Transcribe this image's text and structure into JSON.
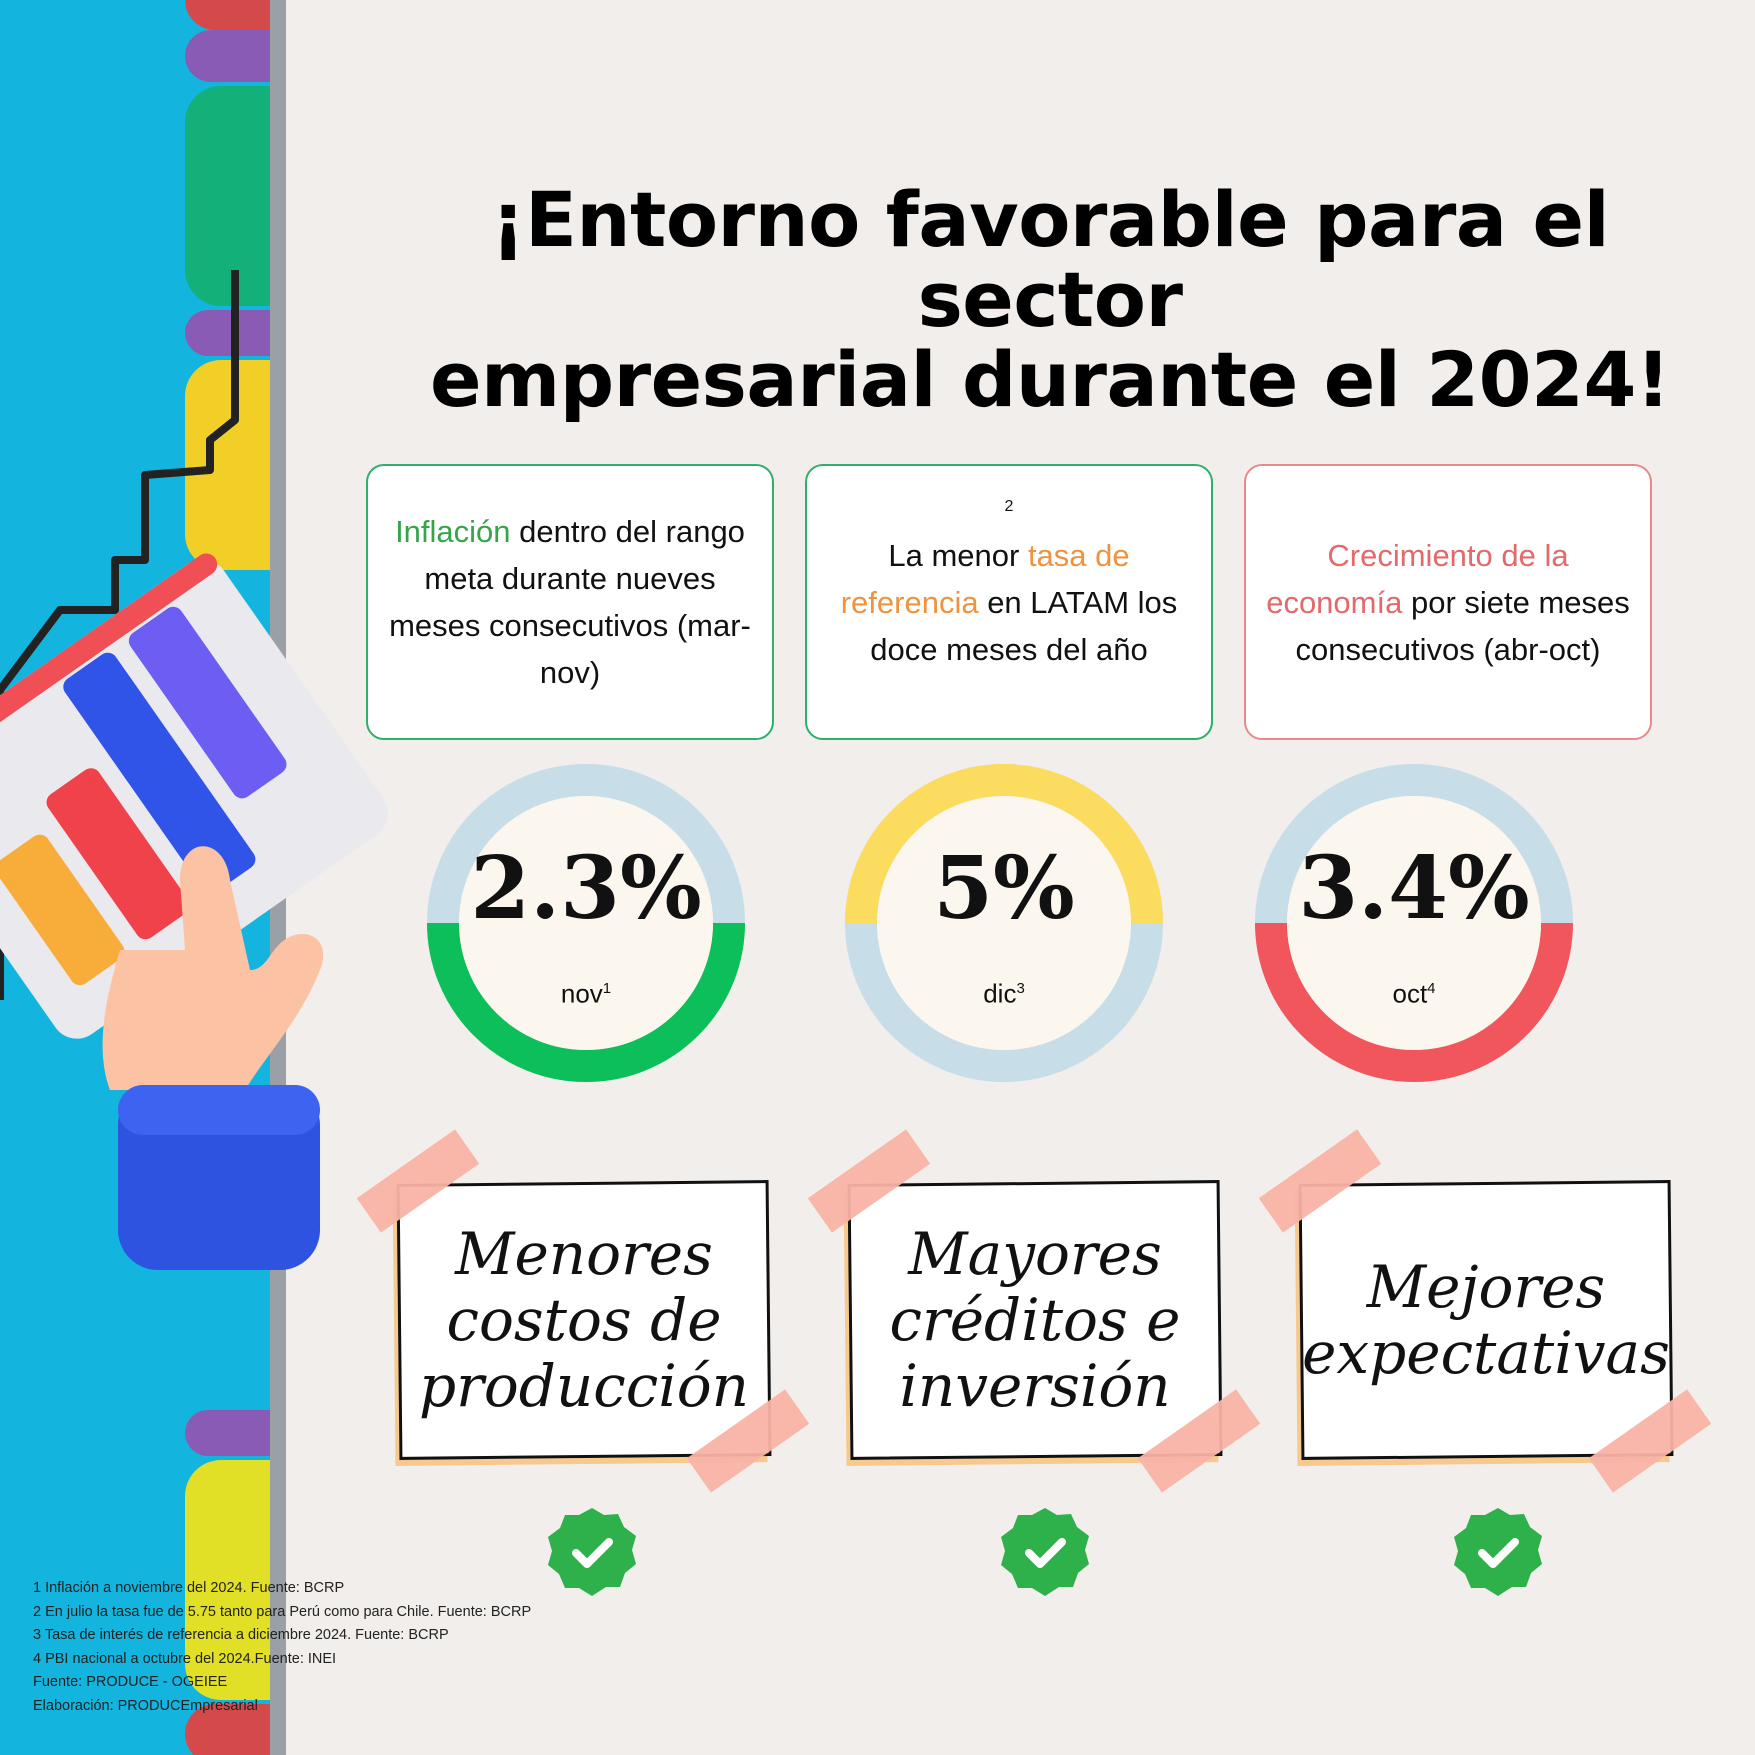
{
  "title": {
    "line1": "¡Entorno favorable para el sector",
    "line2": "empresarial durante el 2024!"
  },
  "cards": [
    {
      "highlight": "Inflación",
      "rest": " dentro del rango meta durante nueves meses consecutivos (mar-nov)"
    },
    {
      "superscript": "2",
      "pre": "La menor ",
      "highlight": "tasa de referencia",
      "rest": " en LATAM los doce meses del año"
    },
    {
      "highlight": "Crecimiento de la economía",
      "rest": " por siete meses consecutivos (abr-oct)"
    }
  ],
  "indicators": [
    {
      "value": "2.3%",
      "label": "nov",
      "note": "1",
      "accent": "#0cbf5a",
      "track": "#c7dde8"
    },
    {
      "value": "5%",
      "label": "dic",
      "note": "3",
      "accent": "#fbdc5e",
      "track": "#c7dde8"
    },
    {
      "value": "3.4%",
      "label": "oct",
      "note": "4",
      "accent": "#f0565c",
      "track": "#c7dde8"
    }
  ],
  "notes": [
    {
      "lines": [
        "Menores",
        "costos de",
        "producción"
      ]
    },
    {
      "lines": [
        "Mayores",
        "créditos e",
        "inversión"
      ]
    },
    {
      "lines": [
        "Mejores",
        "expectativas"
      ]
    }
  ],
  "check_icon": "check-badge-icon",
  "footnotes": [
    "1 Inflación a noviembre del 2024. Fuente: BCRP",
    "2 En julio la tasa fue de 5.75 tanto para Perú como para Chile. Fuente: BCRP",
    "3 Tasa de interés de referencia a diciembre 2024. Fuente: BCRP",
    "4 PBI nacional a octubre del 2024.Fuente: INEI",
    "Fuente: PRODUCE - OGEIEE",
    "Elaboración: PRODUCEmpresarial"
  ]
}
